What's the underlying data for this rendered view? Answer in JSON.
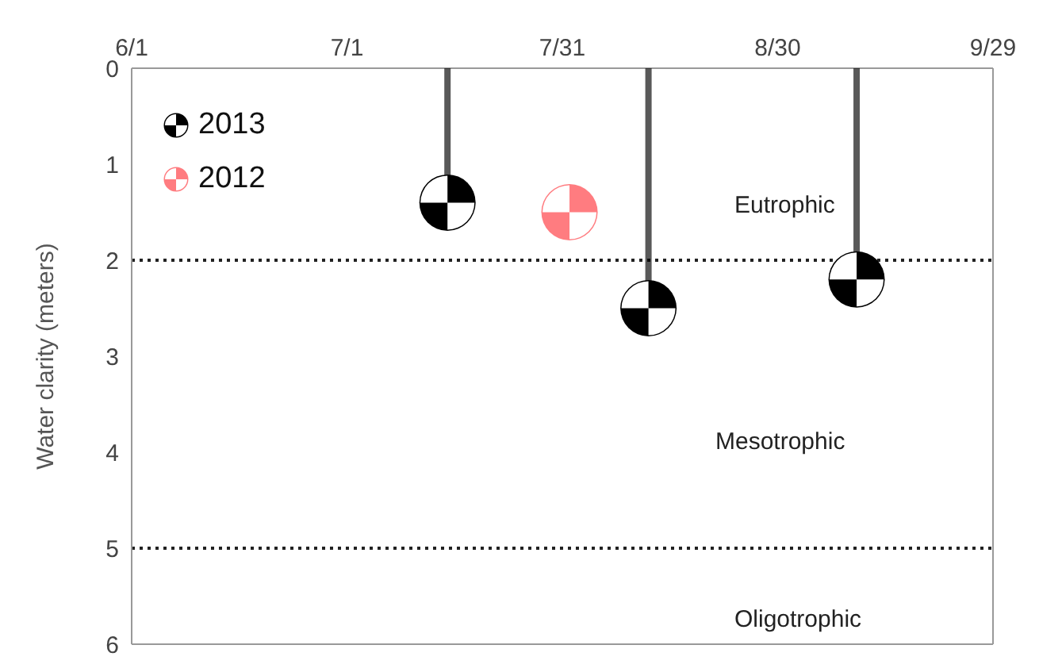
{
  "chart_data": {
    "type": "scatter",
    "ylabel": "Water clarity (meters)",
    "xlim": [
      "--06-01",
      "--09-29"
    ],
    "xticks": [
      {
        "value": "--06-01",
        "label": "6/1"
      },
      {
        "value": "--07-01",
        "label": "7/1"
      },
      {
        "value": "--07-31",
        "label": "7/31"
      },
      {
        "value": "--08-30",
        "label": "8/30"
      },
      {
        "value": "--09-29",
        "label": "9/29"
      }
    ],
    "ylim": [
      6,
      0
    ],
    "yticks": [
      0,
      1,
      2,
      3,
      4,
      5,
      6
    ],
    "series": [
      {
        "name": "2013",
        "type": "lollipop",
        "color": "#000000",
        "x": [
          "--07-15",
          "--08-12",
          "--09-10"
        ],
        "values": [
          1.4,
          2.5,
          2.2
        ]
      },
      {
        "name": "2012",
        "color": "#ff7c80",
        "x": [
          "--08-01"
        ],
        "values": [
          1.5
        ]
      }
    ],
    "ref_lines": [
      {
        "axis": "y",
        "value": 2,
        "line_style": "dotted"
      },
      {
        "axis": "y",
        "value": 5,
        "line_style": "dotted"
      }
    ],
    "annotations": [
      "Eutrophic",
      "Mesotrophic",
      "Oligotrophic"
    ],
    "legend": "top left",
    "grid": false
  }
}
